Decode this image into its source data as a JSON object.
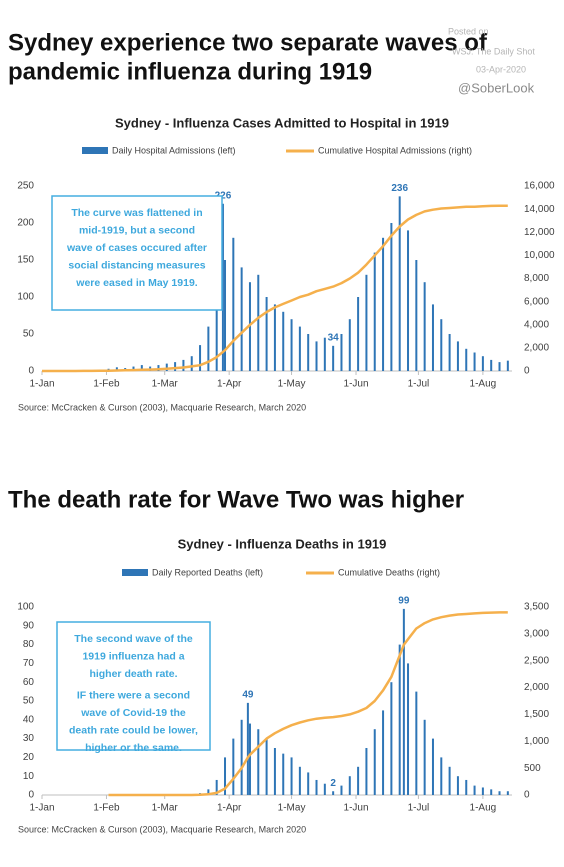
{
  "page": {
    "headline_1": [
      "Sydney experience two separate waves of",
      "pandemic influenza during 1919"
    ],
    "posted": [
      "Posted on",
      "WSJ: The Daily Shot",
      "03-Apr-2020"
    ],
    "handle": "@SoberLook",
    "headline_2": "The death rate for Wave Two was higher"
  },
  "chart_data": [
    {
      "type": "bar",
      "title": "Sydney - Influenza Cases Admitted to Hospital in 1919",
      "source": "Source: McCracken & Curson (2003), Macquarie Research, March 2020",
      "box": [
        "The curve was flattened in",
        "mid-1919, but a second",
        "wave of cases occured after",
        "social distancing measures",
        "were eased in May 1919."
      ],
      "x": [
        0,
        4,
        8,
        12,
        16,
        20,
        24,
        28,
        32,
        36,
        40,
        44,
        48,
        52,
        56,
        60,
        64,
        68,
        72,
        76,
        80,
        84,
        87,
        88,
        92,
        96,
        100,
        104,
        108,
        112,
        116,
        120,
        124,
        128,
        132,
        136,
        140,
        144,
        148,
        152,
        156,
        160,
        164,
        168,
        172,
        176,
        180,
        184,
        188,
        192,
        196,
        200,
        204,
        208,
        212,
        216,
        220,
        224
      ],
      "series": [
        {
          "name": "Daily Hospital Admissions (left)",
          "color": "#2e75b6",
          "type": "bar",
          "values": [
            0,
            0,
            0,
            0,
            0,
            1,
            1,
            2,
            3,
            5,
            4,
            6,
            8,
            6,
            8,
            10,
            12,
            15,
            20,
            35,
            60,
            110,
            226,
            150,
            180,
            140,
            120,
            130,
            100,
            90,
            80,
            70,
            60,
            50,
            40,
            45,
            34,
            50,
            70,
            100,
            130,
            160,
            180,
            200,
            236,
            190,
            150,
            120,
            90,
            70,
            50,
            40,
            30,
            25,
            20,
            15,
            12,
            14
          ]
        },
        {
          "name": "Cumulative Hospital Admissions (right)",
          "color": "#f5b04c",
          "type": "line",
          "axis": "y2",
          "values": [
            0,
            0,
            0,
            0,
            0,
            5,
            10,
            20,
            30,
            45,
            60,
            80,
            100,
            120,
            150,
            200,
            250,
            300,
            400,
            500,
            800,
            1200,
            1650,
            1800,
            2600,
            3300,
            4000,
            4600,
            5100,
            5500,
            5800,
            6100,
            6400,
            6600,
            6900,
            7100,
            7300,
            7600,
            8000,
            8500,
            9200,
            10000,
            10800,
            11700,
            12500,
            13100,
            13500,
            13800,
            13950,
            14050,
            14100,
            14150,
            14200,
            14200,
            14250,
            14280,
            14300,
            14300
          ]
        }
      ],
      "xlim": [
        0,
        226
      ],
      "xticks": [
        {
          "value": 0,
          "label": "1-Jan"
        },
        {
          "value": 31,
          "label": "1-Feb"
        },
        {
          "value": 59,
          "label": "1-Mar"
        },
        {
          "value": 90,
          "label": "1-Apr"
        },
        {
          "value": 120,
          "label": "1-May"
        },
        {
          "value": 151,
          "label": "1-Jun"
        },
        {
          "value": 181,
          "label": "1-Jul"
        },
        {
          "value": 212,
          "label": "1-Aug"
        }
      ],
      "ylim": [
        0,
        250
      ],
      "yticks": [
        0,
        50,
        100,
        150,
        200,
        250
      ],
      "y2lim": [
        0,
        16000
      ],
      "y2ticks": [
        0,
        {
          "value": 2000,
          "label": "2,000"
        },
        {
          "value": 4000,
          "label": "4,000"
        },
        {
          "value": 6000,
          "label": "6,000"
        },
        {
          "value": 8000,
          "label": "8,000"
        },
        {
          "value": 10000,
          "label": "10,000"
        },
        {
          "value": 12000,
          "label": "12,000"
        },
        {
          "value": 14000,
          "label": "14,000"
        },
        {
          "value": 16000,
          "label": "16,000"
        }
      ],
      "grid": false
    },
    {
      "type": "bar",
      "title": "Sydney - Influenza Deaths in 1919",
      "source": "Source: McCracken & Curson (2003), Macquarie Research, March 2020",
      "box": [
        "The second wave of the",
        "1919 influenza had a",
        "higher death rate.",
        "IF there were a second",
        "wave of Covid-19 the",
        "death rate could be lower,",
        "higher or the same."
      ],
      "x": [
        0,
        4,
        8,
        12,
        16,
        20,
        24,
        28,
        32,
        36,
        40,
        44,
        48,
        52,
        56,
        60,
        64,
        68,
        72,
        76,
        80,
        84,
        88,
        92,
        96,
        99,
        100,
        104,
        108,
        112,
        116,
        120,
        124,
        128,
        132,
        136,
        140,
        144,
        148,
        152,
        156,
        160,
        164,
        168,
        172,
        174,
        176,
        180,
        184,
        188,
        192,
        196,
        200,
        204,
        208,
        212,
        216,
        220,
        224
      ],
      "series": [
        {
          "name": "Daily Reported Deaths (left)",
          "color": "#2e75b6",
          "type": "bar",
          "values": [
            0,
            0,
            0,
            0,
            0,
            0,
            0,
            0,
            0,
            0,
            0,
            0,
            0,
            0,
            0,
            0,
            0,
            0,
            0,
            1,
            3,
            8,
            20,
            30,
            40,
            49,
            38,
            35,
            30,
            25,
            22,
            20,
            15,
            12,
            8,
            6,
            2,
            5,
            10,
            15,
            25,
            35,
            45,
            60,
            80,
            99,
            70,
            55,
            40,
            30,
            20,
            15,
            10,
            8,
            5,
            4,
            3,
            2,
            2
          ]
        },
        {
          "name": "Cumulative Deaths (right)",
          "color": "#f5b04c",
          "type": "line",
          "axis": "y2",
          "values": [
            null,
            null,
            null,
            null,
            null,
            null,
            null,
            null,
            0,
            0,
            0,
            0,
            0,
            0,
            0,
            0,
            0,
            0,
            0,
            5,
            15,
            40,
            120,
            300,
            500,
            700,
            750,
            900,
            1050,
            1150,
            1230,
            1300,
            1350,
            1390,
            1420,
            1440,
            1450,
            1470,
            1500,
            1550,
            1620,
            1750,
            1950,
            2200,
            2600,
            2800,
            2900,
            3100,
            3200,
            3270,
            3310,
            3340,
            3360,
            3370,
            3380,
            3390,
            3395,
            3400,
            3400
          ]
        }
      ],
      "xlim": [
        0,
        226
      ],
      "xticks": [
        {
          "value": 0,
          "label": "1-Jan"
        },
        {
          "value": 31,
          "label": "1-Feb"
        },
        {
          "value": 59,
          "label": "1-Mar"
        },
        {
          "value": 90,
          "label": "1-Apr"
        },
        {
          "value": 120,
          "label": "1-May"
        },
        {
          "value": 151,
          "label": "1-Jun"
        },
        {
          "value": 181,
          "label": "1-Jul"
        },
        {
          "value": 212,
          "label": "1-Aug"
        }
      ],
      "ylim": [
        0,
        100
      ],
      "yticks": [
        0,
        10,
        20,
        30,
        40,
        50,
        60,
        70,
        80,
        90,
        100
      ],
      "y2lim": [
        0,
        3500
      ],
      "y2ticks": [
        0,
        500,
        {
          "value": 1000,
          "label": "1,000"
        },
        {
          "value": 1500,
          "label": "1,500"
        },
        {
          "value": 2000,
          "label": "2,000"
        },
        {
          "value": 2500,
          "label": "2,500"
        },
        {
          "value": 3000,
          "label": "3,000"
        },
        {
          "value": 3500,
          "label": "3,500"
        }
      ],
      "grid": false
    }
  ]
}
